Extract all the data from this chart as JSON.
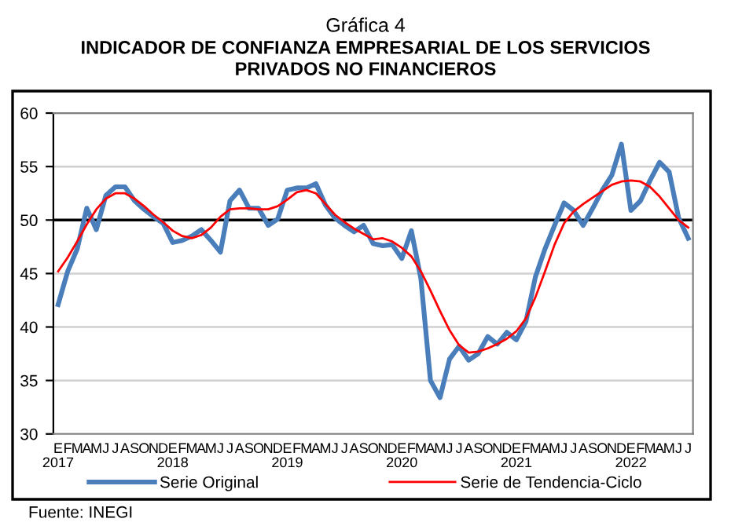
{
  "chart_data": {
    "type": "line",
    "title": "Gráfica 4",
    "subtitle": "INDICADOR DE CONFIANZA EMPRESARIAL DE LOS SERVICIOS\nPRIVADOS NO FINANCIEROS",
    "categories": [
      "E\n2017",
      "F",
      "M",
      "A",
      "M",
      "J",
      "J",
      "A",
      "S",
      "O",
      "N",
      "D",
      "E\n2018",
      "F",
      "M",
      "A",
      "M",
      "J",
      "J",
      "A",
      "S",
      "O",
      "N",
      "D",
      "E\n2019",
      "F",
      "M",
      "A",
      "M",
      "J",
      "J",
      "A",
      "S",
      "O",
      "N",
      "D",
      "E\n2020",
      "F",
      "M",
      "A",
      "M",
      "J",
      "J",
      "A",
      "S",
      "O",
      "N",
      "D",
      "E\n2021",
      "F",
      "M",
      "A",
      "M",
      "J",
      "J",
      "A",
      "S",
      "O",
      "N",
      "D",
      "E\n2022",
      "F",
      "M",
      "A",
      "M",
      "J",
      "J"
    ],
    "series": [
      {
        "name": "Serie Original",
        "color": "#4a7ebb",
        "values": [
          42.1,
          45.2,
          47.3,
          51.1,
          49.1,
          52.3,
          53.1,
          53.1,
          51.8,
          51.0,
          50.3,
          49.7,
          47.9,
          48.1,
          48.5,
          49.1,
          48.1,
          47.0,
          51.8,
          52.8,
          51.1,
          51.1,
          49.5,
          50.1,
          52.8,
          53.0,
          53.0,
          53.4,
          51.4,
          50.2,
          49.5,
          48.9,
          49.5,
          47.8,
          47.6,
          47.7,
          46.4,
          49.0,
          44.5,
          35.0,
          33.4,
          37.0,
          38.2,
          36.9,
          37.5,
          39.1,
          38.4,
          39.5,
          38.8,
          40.5,
          44.7,
          47.3,
          49.5,
          51.6,
          50.9,
          49.5,
          51.1,
          52.8,
          54.2,
          57.1,
          50.9,
          51.8,
          53.7,
          55.4,
          54.5,
          50.2,
          48.3
        ]
      },
      {
        "name": "Serie de Tendencia-Ciclo",
        "color": "#ff0000",
        "values": [
          45.2,
          46.5,
          48.0,
          49.6,
          51.0,
          52.0,
          52.5,
          52.5,
          52.0,
          51.3,
          50.5,
          49.8,
          49.0,
          48.5,
          48.3,
          48.6,
          49.3,
          50.3,
          51.0,
          51.1,
          51.1,
          51.0,
          51.0,
          51.3,
          51.9,
          52.6,
          52.8,
          52.5,
          51.5,
          50.5,
          49.8,
          49.2,
          48.7,
          48.2,
          48.3,
          48.0,
          47.4,
          46.6,
          45.2,
          43.4,
          41.5,
          39.7,
          38.3,
          37.6,
          37.7,
          38.0,
          38.4,
          38.9,
          39.6,
          40.8,
          42.8,
          45.2,
          47.7,
          49.7,
          50.8,
          51.5,
          52.1,
          52.7,
          53.3,
          53.6,
          53.7,
          53.6,
          53.1,
          52.2,
          51.1,
          50.0,
          49.3
        ]
      }
    ],
    "ylim": [
      30,
      60
    ],
    "yticks": [
      30,
      35,
      40,
      45,
      50,
      55,
      60
    ],
    "grid": "y",
    "legend": "bottom",
    "ref_lines": [
      {
        "axis": "y",
        "value": 50,
        "color": "#000000"
      }
    ],
    "annotations": [
      "Fuente: INEGI"
    ]
  }
}
